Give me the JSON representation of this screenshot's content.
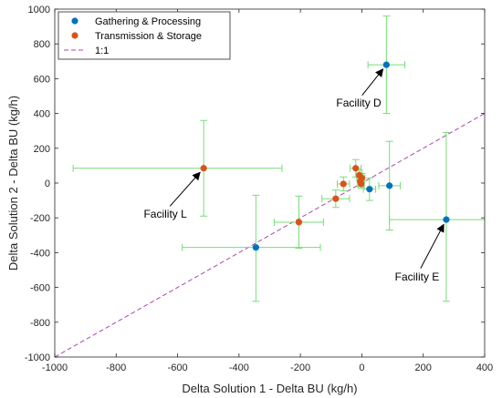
{
  "chart_data": {
    "type": "scatter",
    "title": "",
    "xlabel": "Delta Solution 1 - Delta BU (kg/h)",
    "ylabel": "Delta Solution 2 - Delta BU (kg/h)",
    "xlim": [
      -1000,
      400
    ],
    "ylim": [
      -1000,
      1000
    ],
    "xticks": [
      -1000,
      -800,
      -600,
      -400,
      -200,
      0,
      200,
      400
    ],
    "yticks": [
      -1000,
      -800,
      -600,
      -400,
      -200,
      0,
      200,
      400,
      600,
      800,
      1000
    ],
    "xtick_labels": [
      "-1000",
      "-800",
      "-600",
      "-400",
      "-200",
      "0",
      "200",
      "400"
    ],
    "ytick_labels": [
      "-1000",
      "-800",
      "-600",
      "-400",
      "-200",
      "0",
      "200",
      "400",
      "600",
      "800",
      "1000"
    ],
    "grid": false,
    "legend_position": "top-left",
    "errorbar_color": "#77dd77",
    "series": [
      {
        "name": "Gathering & Processing",
        "color": "#0072BD",
        "points": [
          {
            "x": 80,
            "y": 680,
            "xerr": [
              60,
              60
            ],
            "yerr": [
              280,
              280
            ]
          },
          {
            "x": 275,
            "y": -210,
            "xerr": [
              185,
              185
            ],
            "yerr": [
              470,
              500
            ]
          },
          {
            "x": -345,
            "y": -370,
            "xerr": [
              240,
              210
            ],
            "yerr": [
              310,
              300
            ]
          },
          {
            "x": 90,
            "y": -15,
            "xerr": [
              35,
              35
            ],
            "yerr": [
              255,
              255
            ]
          },
          {
            "x": 25,
            "y": -35,
            "xerr": [
              20,
              20
            ],
            "yerr": [
              65,
              65
            ]
          }
        ]
      },
      {
        "name": "Transmission & Storage",
        "color": "#D95319",
        "points": [
          {
            "x": -515,
            "y": 85,
            "xerr": [
              425,
              255
            ],
            "yerr": [
              275,
              275
            ]
          },
          {
            "x": -205,
            "y": -225,
            "xerr": [
              80,
              80
            ],
            "yerr": [
              150,
              150
            ]
          },
          {
            "x": -85,
            "y": -90,
            "xerr": [
              45,
              45
            ],
            "yerr": [
              50,
              50
            ]
          },
          {
            "x": -60,
            "y": -5,
            "xerr": [
              20,
              20
            ],
            "yerr": [
              40,
              40
            ]
          },
          {
            "x": -20,
            "y": 85,
            "xerr": [
              18,
              18
            ],
            "yerr": [
              50,
              50
            ]
          },
          {
            "x": -8,
            "y": 45,
            "xerr": [
              10,
              10
            ],
            "yerr": [
              30,
              30
            ]
          },
          {
            "x": -5,
            "y": 10,
            "xerr": [
              10,
              10
            ],
            "yerr": [
              30,
              30
            ]
          },
          {
            "x": -2,
            "y": -5,
            "xerr": [
              10,
              10
            ],
            "yerr": [
              25,
              25
            ]
          },
          {
            "x": 0,
            "y": 30,
            "xerr": [
              10,
              10
            ],
            "yerr": [
              25,
              25
            ]
          }
        ]
      },
      {
        "name": "1:1",
        "type": "line",
        "color": "#A848A8",
        "dash": true,
        "x": [
          -1000,
          400
        ],
        "y": [
          -1000,
          400
        ]
      }
    ],
    "annotations": [
      {
        "text": "Facility D",
        "point": {
          "x": 80,
          "y": 680
        },
        "text_at": {
          "x": -10,
          "y": 440
        }
      },
      {
        "text": "Facility L",
        "point": {
          "x": -515,
          "y": 85
        },
        "text_at": {
          "x": -640,
          "y": -200
        }
      },
      {
        "text": "Facility E",
        "point": {
          "x": 275,
          "y": -210
        },
        "text_at": {
          "x": 180,
          "y": -560
        }
      }
    ]
  }
}
